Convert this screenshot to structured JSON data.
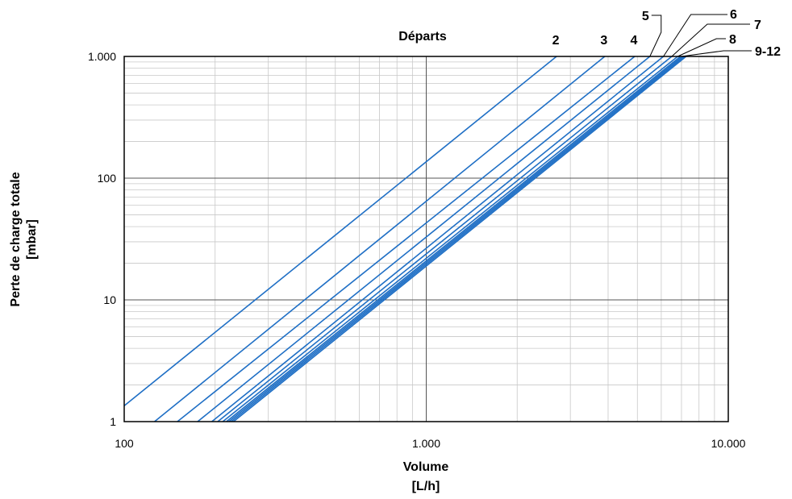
{
  "chart_data": {
    "type": "line",
    "x_scale": "log",
    "y_scale": "log",
    "xlim": [
      100,
      10000
    ],
    "ylim": [
      1,
      1000
    ],
    "xlabel": [
      "Volume",
      "[L/h]"
    ],
    "ylabel": [
      "Perte de charge totale",
      "[mbar]"
    ],
    "legend_title": "Départs",
    "x_ticks": [
      {
        "value": 100,
        "label": "100"
      },
      {
        "value": 1000,
        "label": "1.000"
      },
      {
        "value": 10000,
        "label": "10.000"
      }
    ],
    "y_ticks": [
      {
        "value": 1,
        "label": "1"
      },
      {
        "value": 10,
        "label": "10"
      },
      {
        "value": 100,
        "label": "100"
      },
      {
        "value": 1000,
        "label": "1.000"
      }
    ],
    "grid": true,
    "line_color": "#1f6fc5",
    "series": [
      {
        "name": "2",
        "x": [
          100,
          2700
        ],
        "y": [
          1.35,
          1000
        ]
      },
      {
        "name": "3",
        "x": [
          126,
          3900
        ],
        "y": [
          1,
          1000
        ]
      },
      {
        "name": "4",
        "x": [
          150,
          4900
        ],
        "y": [
          1,
          1000
        ]
      },
      {
        "name": "5",
        "x": [
          175,
          5500
        ],
        "y": [
          1,
          1000
        ]
      },
      {
        "name": "6",
        "x": [
          195,
          6100
        ],
        "y": [
          1,
          1000
        ]
      },
      {
        "name": "7",
        "x": [
          204,
          6500
        ],
        "y": [
          1,
          1000
        ]
      },
      {
        "name": "8",
        "x": [
          212,
          6800
        ],
        "y": [
          1,
          1000
        ]
      },
      {
        "name": "9",
        "x": [
          218,
          6950
        ],
        "y": [
          1,
          1000
        ]
      },
      {
        "name": "10",
        "x": [
          222,
          7050
        ],
        "y": [
          1,
          1000
        ]
      },
      {
        "name": "11",
        "x": [
          226,
          7150
        ],
        "y": [
          1,
          1000
        ]
      },
      {
        "name": "12",
        "x": [
          230,
          7250
        ],
        "y": [
          1,
          1000
        ]
      }
    ],
    "series_labels": [
      {
        "text": "2",
        "anchor_x": 2700
      },
      {
        "text": "3",
        "anchor_x": 3900
      },
      {
        "text": "4",
        "anchor_x": 4900
      },
      {
        "text": "5",
        "anchor_x": 5500
      },
      {
        "text": "6",
        "anchor_x": 6100
      },
      {
        "text": "7",
        "anchor_x": 6500
      },
      {
        "text": "8",
        "anchor_x": 6800
      },
      {
        "text": "9-12",
        "anchor_x": 7000
      }
    ]
  }
}
